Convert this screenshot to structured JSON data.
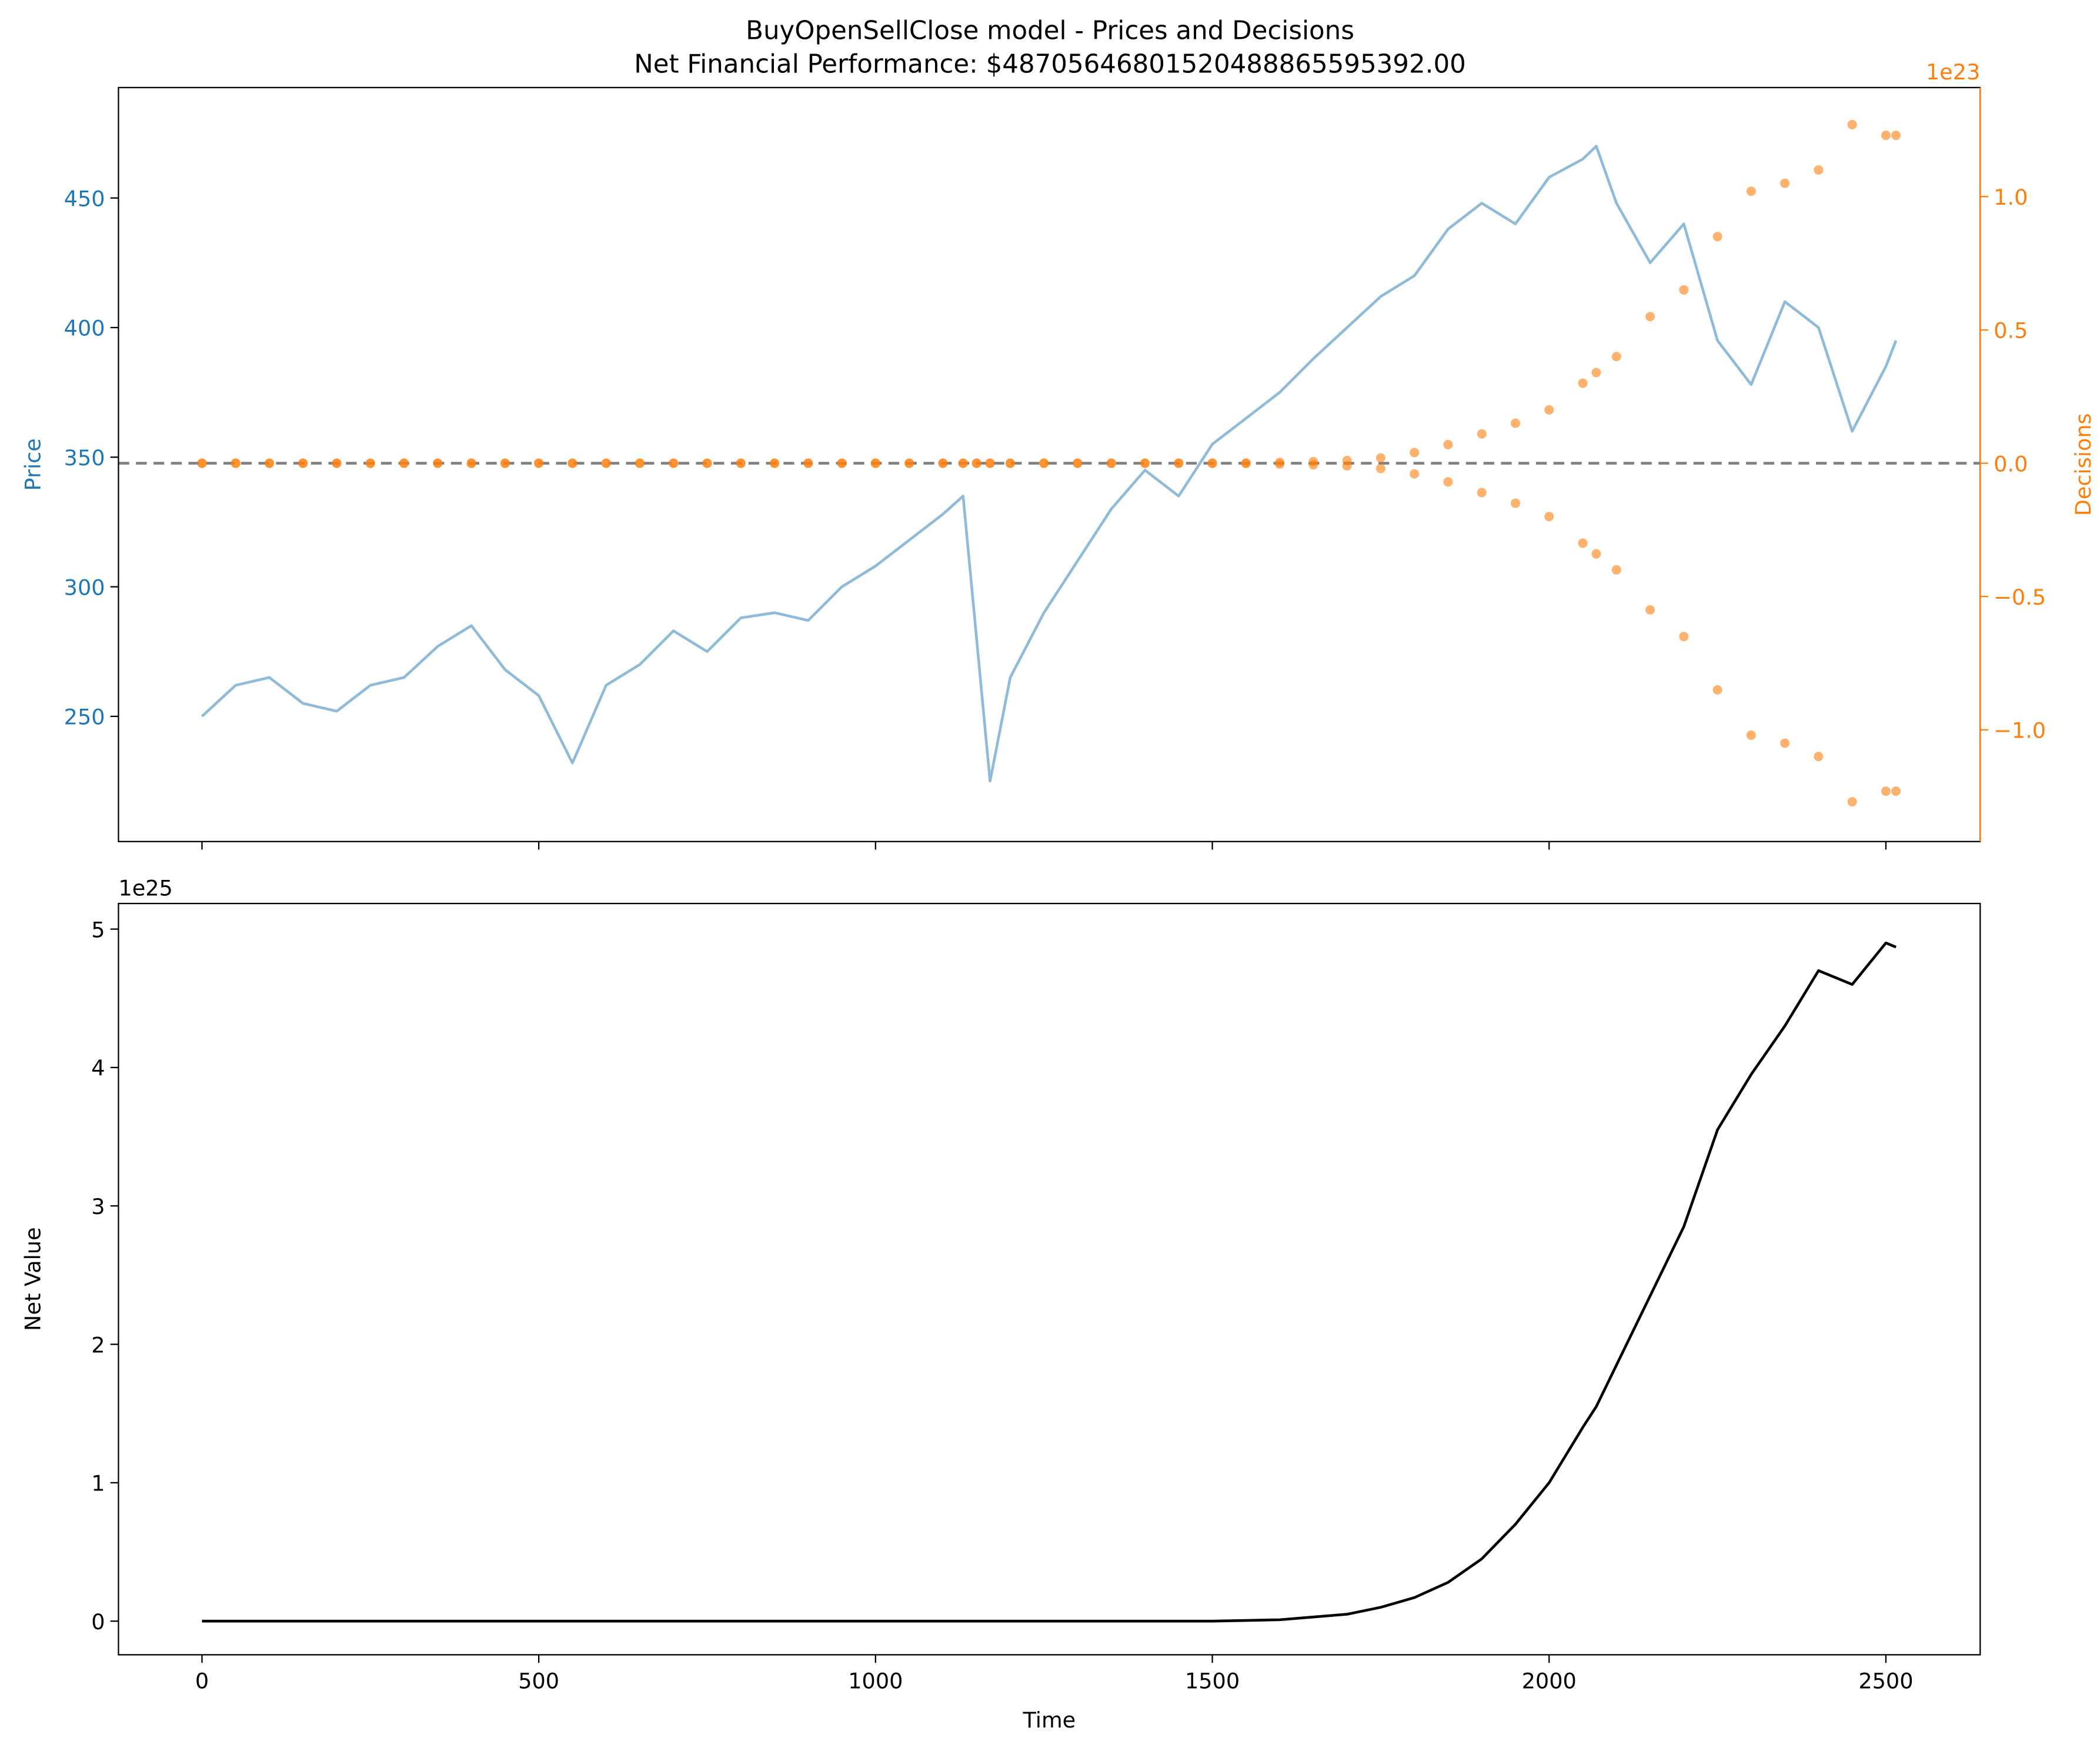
{
  "chart_data": [
    {
      "type": "line",
      "title": "BuyOpenSellClose model - Prices and Decisions",
      "subtitle": "Net Financial Performance: $48705646801520488865595392.00",
      "ylabel": "Price",
      "ylabel_color": "#1f77b4",
      "y2label": "Decisions",
      "y2label_color": "#ff7f0e",
      "y2_offset_label": "1e23",
      "x": [
        0,
        50,
        100,
        150,
        200,
        250,
        300,
        350,
        400,
        450,
        500,
        550,
        600,
        650,
        700,
        750,
        800,
        850,
        900,
        950,
        1000,
        1050,
        1100,
        1130,
        1150,
        1170,
        1200,
        1250,
        1300,
        1350,
        1400,
        1450,
        1500,
        1550,
        1600,
        1650,
        1700,
        1750,
        1800,
        1850,
        1900,
        1950,
        2000,
        2050,
        2070,
        2100,
        2150,
        2200,
        2250,
        2300,
        2350,
        2400,
        2450,
        2500,
        2515
      ],
      "series": [
        {
          "color": "#1f77b4",
          "opacity": 0.5,
          "values": [
            250,
            262,
            265,
            255,
            252,
            262,
            265,
            277,
            285,
            268,
            258,
            232,
            262,
            270,
            283,
            275,
            288,
            290,
            287,
            300,
            308,
            318,
            328,
            335,
            280,
            225,
            265,
            290,
            310,
            330,
            345,
            335,
            355,
            365,
            375,
            388,
            400,
            412,
            420,
            438,
            448,
            440,
            458,
            465,
            470,
            448,
            425,
            440,
            395,
            378,
            410,
            400,
            360,
            385,
            395
          ]
        },
        {
          "color": "#ff7f0e",
          "axis": "y2",
          "marker": "circle",
          "opacity": 0.6,
          "values": [
            0,
            0,
            0,
            0,
            0,
            0,
            0,
            0,
            0,
            0,
            0,
            0,
            0,
            0,
            0,
            0,
            0,
            0,
            0,
            0,
            0,
            0,
            0,
            0,
            0,
            0,
            0,
            0,
            0,
            0,
            0,
            0,
            0,
            0.001,
            0.003,
            0.006,
            0.01,
            0.02,
            0.04,
            0.07,
            0.11,
            0.15,
            0.2,
            0.3,
            0.34,
            0.4,
            0.55,
            0.65,
            0.85,
            1.02,
            1.05,
            1.1,
            1.27,
            1.23,
            1.23
          ]
        },
        {
          "color": "#ff7f0e",
          "axis": "y2",
          "marker": "circle",
          "opacity": 0.6,
          "values": [
            0,
            0,
            0,
            0,
            0,
            0,
            0,
            0,
            0,
            0,
            0,
            0,
            0,
            0,
            0,
            0,
            0,
            0,
            0,
            0,
            0,
            0,
            0,
            0,
            0,
            0,
            0,
            0,
            0,
            0,
            0,
            0,
            0,
            -0.001,
            -0.003,
            -0.006,
            -0.01,
            -0.02,
            -0.04,
            -0.07,
            -0.11,
            -0.15,
            -0.2,
            -0.3,
            -0.34,
            -0.4,
            -0.55,
            -0.65,
            -0.85,
            -1.02,
            -1.05,
            -1.1,
            -1.27,
            -1.23,
            -1.23
          ]
        }
      ],
      "reference_line": {
        "axis": "y2",
        "value": 0,
        "color": "#808080",
        "dash": true
      },
      "xlim": [
        -124,
        2640
      ],
      "xticks": [
        0,
        500,
        1000,
        1500,
        2000,
        2500
      ],
      "show_xtick_labels": false,
      "ylim": [
        201.7,
        492.6
      ],
      "yticks": [
        250,
        300,
        350,
        400,
        450
      ],
      "y2lim": [
        -1.419,
        1.409
      ],
      "y2ticks": [
        {
          "value": -1.0,
          "label": "−1.0"
        },
        {
          "value": -0.5,
          "label": "−0.5"
        },
        {
          "value": 0,
          "label": "0.0"
        },
        {
          "value": 0.5,
          "label": "0.5"
        },
        {
          "value": 1.0,
          "label": "1.0"
        }
      ]
    },
    {
      "type": "line",
      "xlabel": "Time",
      "ylabel": "Net Value",
      "y_offset_label": "1e25",
      "x": [
        0,
        50,
        100,
        150,
        200,
        250,
        300,
        350,
        400,
        450,
        500,
        550,
        600,
        650,
        700,
        750,
        800,
        850,
        900,
        950,
        1000,
        1050,
        1100,
        1130,
        1150,
        1170,
        1200,
        1250,
        1300,
        1350,
        1400,
        1450,
        1500,
        1550,
        1600,
        1650,
        1700,
        1750,
        1800,
        1850,
        1900,
        1950,
        2000,
        2050,
        2070,
        2100,
        2150,
        2200,
        2250,
        2300,
        2350,
        2400,
        2450,
        2500,
        2515
      ],
      "series": [
        {
          "color": "#000000",
          "values": [
            0,
            0,
            0,
            0,
            0,
            0,
            0,
            0,
            0,
            0,
            0,
            0,
            0,
            0,
            0,
            0,
            0,
            0,
            0,
            0,
            0,
            0,
            0,
            0,
            0,
            0,
            0,
            0,
            0,
            0,
            0,
            0,
            0,
            0.005,
            0.01,
            0.03,
            0.05,
            0.1,
            0.17,
            0.28,
            0.45,
            0.7,
            1.0,
            1.4,
            1.55,
            1.85,
            2.35,
            2.85,
            3.55,
            3.95,
            4.3,
            4.7,
            4.6,
            4.9,
            4.87
          ]
        }
      ],
      "xlim": [
        -124,
        2640
      ],
      "xticks": [
        0,
        500,
        1000,
        1500,
        2000,
        2500
      ],
      "show_xtick_labels": true,
      "ylim": [
        -0.243,
        5.185
      ],
      "yticks": [
        0,
        1,
        2,
        3,
        4,
        5
      ]
    }
  ]
}
